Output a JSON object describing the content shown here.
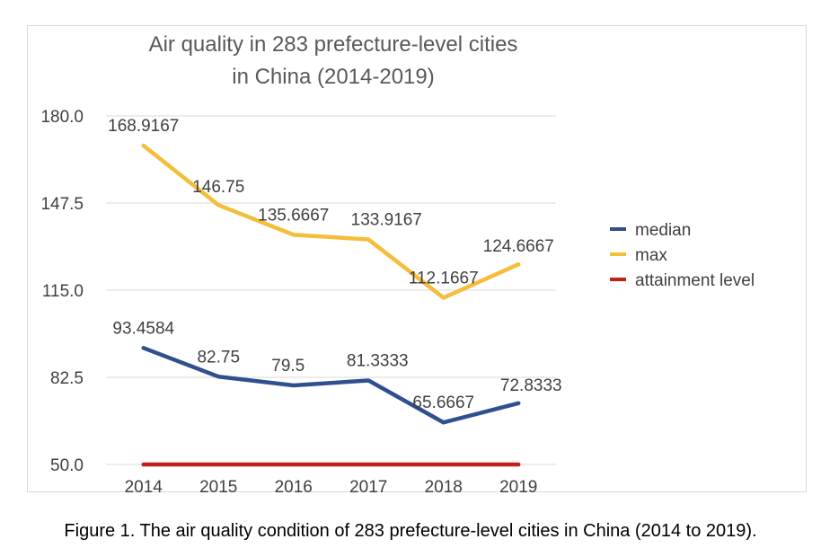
{
  "chart_data": {
    "type": "line",
    "title": "Air quality in 283 prefecture-level cities in China (2014-2019)",
    "title_lines": [
      "Air quality in 283 prefecture-level cities",
      "in China (2014-2019)"
    ],
    "categories": [
      "2014",
      "2015",
      "2016",
      "2017",
      "2018",
      "2019"
    ],
    "series": [
      {
        "name": "median",
        "color": "#2f4f8f",
        "values": [
          93.4584,
          82.75,
          79.5,
          81.3333,
          65.6667,
          72.8333
        ],
        "labels": [
          "93.4584",
          "82.75",
          "79.5",
          "81.3333",
          "65.6667",
          "72.8333"
        ]
      },
      {
        "name": "max",
        "color": "#f4bd3a",
        "values": [
          168.9167,
          146.75,
          135.6667,
          133.9167,
          112.1667,
          124.6667
        ],
        "labels": [
          "168.9167",
          "146.75",
          "135.6667",
          "133.9167",
          "112.1667",
          "124.6667"
        ]
      },
      {
        "name": "attainment level",
        "color": "#c0221a",
        "values": [
          50,
          50,
          50,
          50,
          50,
          50
        ],
        "labels": []
      }
    ],
    "ylim": [
      50,
      180
    ],
    "yticks": [
      "180.0",
      "147.5",
      "115.0",
      "82.5",
      "50.0"
    ],
    "xlabel": "",
    "ylabel": "",
    "grid": true,
    "legend": "right"
  },
  "caption": "Figure 1. The air quality condition of 283 prefecture-level cities in China (2014 to 2019)."
}
